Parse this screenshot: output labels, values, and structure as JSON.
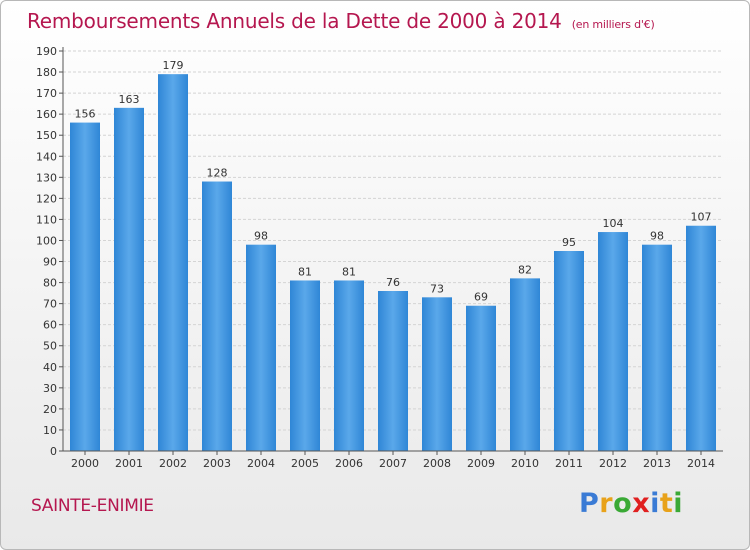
{
  "header": {
    "title": "Remboursements Annuels de la Dette de 2000 à 2014",
    "unit": "(en milliers d'€)"
  },
  "commune": "SAINTE-ENIMIE",
  "brand": {
    "letters": [
      "P",
      "r",
      "o",
      "x",
      "i",
      "t",
      "i"
    ],
    "colors": [
      "#3a7bd5",
      "#e8a21a",
      "#3aa935",
      "#e02020",
      "#3a7bd5",
      "#e8a21a",
      "#3aa935"
    ]
  },
  "colors": {
    "bar": "#4a9be0",
    "bar_dark": "#2a78c4",
    "accent": "#b5174f"
  },
  "chart_data": {
    "type": "bar",
    "title": "Remboursements Annuels de la Dette de 2000 à 2014",
    "xlabel": "",
    "ylabel": "",
    "ylim": [
      0,
      190
    ],
    "ytick_step": 10,
    "grid": true,
    "categories": [
      "2000",
      "2001",
      "2002",
      "2003",
      "2004",
      "2005",
      "2006",
      "2007",
      "2008",
      "2009",
      "2010",
      "2011",
      "2012",
      "2013",
      "2014"
    ],
    "values": [
      156,
      163,
      179,
      128,
      98,
      81,
      81,
      76,
      73,
      69,
      82,
      95,
      104,
      98,
      107
    ]
  }
}
